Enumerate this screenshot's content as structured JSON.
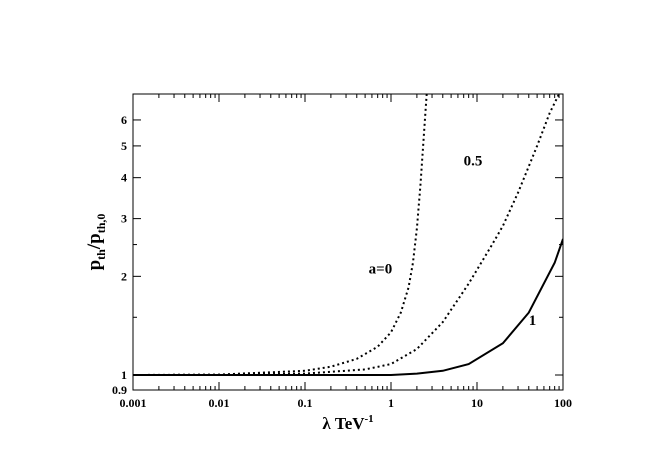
{
  "chart_data": {
    "type": "line",
    "title": "",
    "xlabel": "λ TeV",
    "xlabel_sup": "-1",
    "ylabel": "p",
    "ylabel_sub1": "th",
    "ylabel_mid": "/p",
    "ylabel_sub2": "th,0",
    "x_scale": "log",
    "y_scale": "log",
    "xlim": [
      0.001,
      100
    ],
    "ylim": [
      0.9,
      7.2
    ],
    "grid": false,
    "legend": "none",
    "x_ticks": [
      {
        "value": 0.001,
        "label": "0.001"
      },
      {
        "value": 0.01,
        "label": "0.01"
      },
      {
        "value": 0.1,
        "label": "0.1"
      },
      {
        "value": 1,
        "label": "1"
      },
      {
        "value": 10,
        "label": "10"
      },
      {
        "value": 100,
        "label": "100"
      }
    ],
    "y_ticks": [
      {
        "value": 0.9,
        "label": "0.9"
      },
      {
        "value": 1,
        "label": "1"
      },
      {
        "value": 2,
        "label": "2"
      },
      {
        "value": 3,
        "label": "3"
      },
      {
        "value": 4,
        "label": "4"
      },
      {
        "value": 5,
        "label": "5"
      },
      {
        "value": 6,
        "label": "6"
      }
    ],
    "series": [
      {
        "name": "a=0",
        "style": "dotted",
        "x": [
          0.001,
          0.01,
          0.1,
          0.2,
          0.4,
          0.7,
          1.0,
          1.3,
          1.6,
          1.8,
          2.0,
          2.2,
          2.4,
          2.6
        ],
        "y": [
          1.0,
          1.003,
          1.03,
          1.06,
          1.12,
          1.22,
          1.35,
          1.55,
          1.85,
          2.2,
          2.8,
          3.8,
          5.3,
          7.2
        ]
      },
      {
        "name": "0.5",
        "style": "dotted",
        "x": [
          0.001,
          0.01,
          0.1,
          0.5,
          1.0,
          2.0,
          4.0,
          8.0,
          15,
          20,
          30,
          50,
          70,
          90
        ],
        "y": [
          1.0,
          1.001,
          1.01,
          1.04,
          1.08,
          1.2,
          1.45,
          1.9,
          2.5,
          2.85,
          3.6,
          5.0,
          6.3,
          7.2
        ]
      },
      {
        "name": "1",
        "style": "solid",
        "x": [
          0.001,
          0.01,
          0.1,
          1.0,
          2.0,
          4.0,
          8.0,
          20,
          40,
          80,
          100
        ],
        "y": [
          1.0,
          1.0,
          1.0,
          1.0,
          1.01,
          1.03,
          1.08,
          1.25,
          1.55,
          2.2,
          2.6
        ]
      }
    ]
  }
}
